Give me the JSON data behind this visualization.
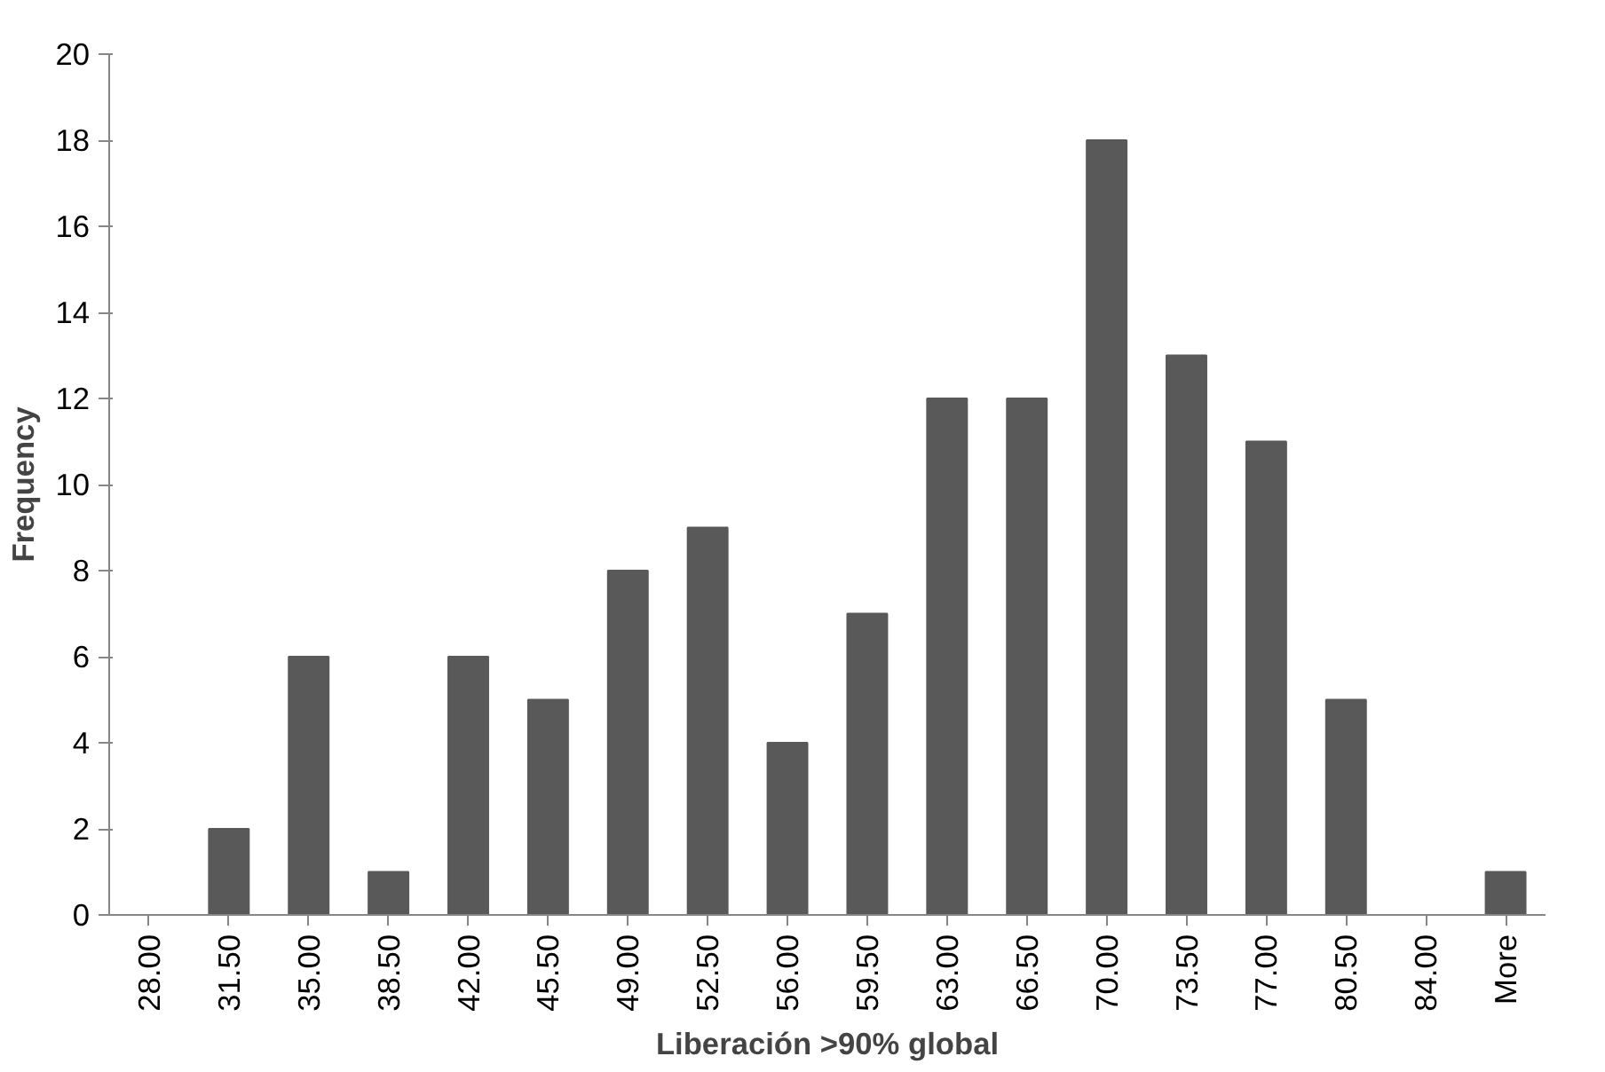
{
  "chart_data": {
    "type": "bar",
    "xlabel": "Liberación >90% global",
    "ylabel": "Frequency",
    "categories": [
      "28.00",
      "31.50",
      "35.00",
      "38.50",
      "42.00",
      "45.50",
      "49.00",
      "52.50",
      "56.00",
      "59.50",
      "63.00",
      "66.50",
      "70.00",
      "73.50",
      "77.00",
      "80.50",
      "84.00",
      "More"
    ],
    "values": [
      0,
      2,
      6,
      1,
      6,
      5,
      8,
      9,
      4,
      7,
      12,
      12,
      18,
      13,
      11,
      5,
      0,
      1
    ],
    "color": "#595959",
    "ylim": [
      0,
      20
    ],
    "yticks": [
      0,
      2,
      4,
      6,
      8,
      10,
      12,
      14,
      16,
      18,
      20
    ],
    "grid": false
  }
}
